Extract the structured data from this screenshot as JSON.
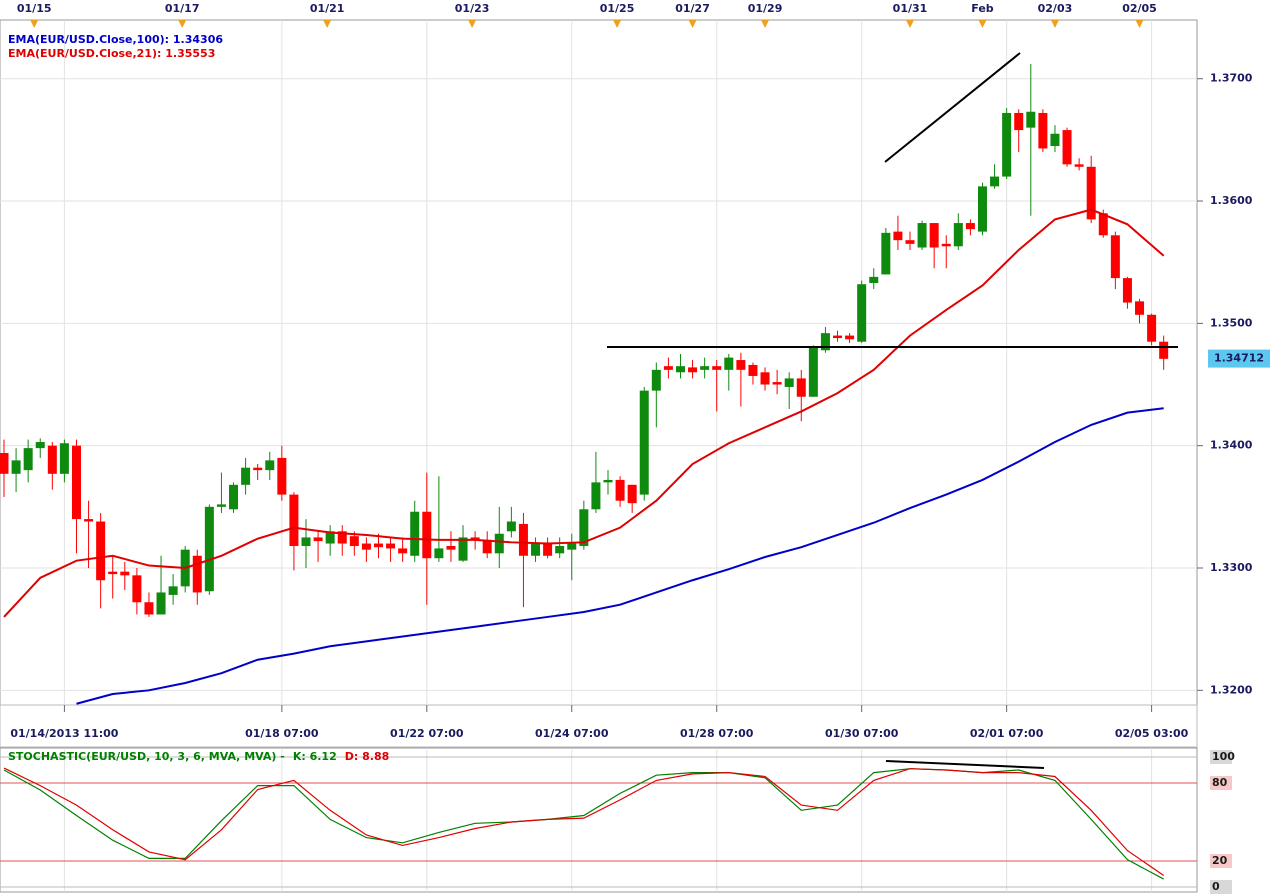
{
  "chart_data": [
    {
      "type": "candlestick",
      "ylim": [
        1.3188,
        1.3748
      ],
      "yticks": [
        {
          "value": 1.32,
          "label": "1.3200"
        },
        {
          "value": 1.33,
          "label": "1.3300"
        },
        {
          "value": 1.34,
          "label": "1.3400"
        },
        {
          "value": 1.35,
          "label": "1.3500"
        },
        {
          "value": 1.36,
          "label": "1.3600"
        },
        {
          "value": 1.37,
          "label": "1.3700"
        }
      ],
      "xticks_top": [
        {
          "value": 2.5,
          "label": "01/15"
        },
        {
          "value": 14.75,
          "label": "01/17"
        },
        {
          "value": 26.75,
          "label": "01/21"
        },
        {
          "value": 38.75,
          "label": "01/23"
        },
        {
          "value": 50.75,
          "label": "01/25"
        },
        {
          "value": 57,
          "label": "01/27"
        },
        {
          "value": 63,
          "label": "01/29"
        },
        {
          "value": 75,
          "label": "01/31"
        },
        {
          "value": 81,
          "label": "Feb"
        },
        {
          "value": 87,
          "label": "02/03"
        },
        {
          "value": 94,
          "label": "02/05"
        }
      ],
      "xticks": [
        {
          "value": 5,
          "label": "01/14/2013 11:00"
        },
        {
          "value": 23,
          "label": "01/18 07:00"
        },
        {
          "value": 35,
          "label": "01/22 07:00"
        },
        {
          "value": 47,
          "label": "01/24 07:00"
        },
        {
          "value": 59,
          "label": "01/28 07:00"
        },
        {
          "value": 71,
          "label": "01/30 07:00"
        },
        {
          "value": 83,
          "label": "02/01 07:00"
        },
        {
          "value": 95,
          "label": "02/05 03:00"
        }
      ],
      "grid": true,
      "up_color": "#0e8a0e",
      "down_color": "#ff0000",
      "open": [
        1.3394,
        1.3377,
        1.338,
        1.3398,
        1.34,
        1.3377,
        1.34,
        1.334,
        1.3338,
        1.3297,
        1.3297,
        1.3294,
        1.3272,
        1.3262,
        1.3278,
        1.3285,
        1.331,
        1.3281,
        1.335,
        1.3348,
        1.3368,
        1.3382,
        1.338,
        1.339,
        1.336,
        1.3318,
        1.3325,
        1.332,
        1.333,
        1.3326,
        1.332,
        1.332,
        1.332,
        1.3316,
        1.331,
        1.3346,
        1.3308,
        1.3318,
        1.3306,
        1.3325,
        1.3323,
        1.3312,
        1.333,
        1.3336,
        1.331,
        1.332,
        1.3312,
        1.3315,
        1.3318,
        1.3348,
        1.337,
        1.3372,
        1.3368,
        1.336,
        1.3445,
        1.3465,
        1.346,
        1.3464,
        1.3462,
        1.3465,
        1.3462,
        1.347,
        1.3466,
        1.346,
        1.3452,
        1.3448,
        1.3455,
        1.344,
        1.3478,
        1.349,
        1.349,
        1.3485,
        1.3533,
        1.354,
        1.3575,
        1.3568,
        1.3562,
        1.3582,
        1.3565,
        1.3563,
        1.3582,
        1.3575,
        1.3612,
        1.362,
        1.3672,
        1.366,
        1.3672,
        1.3645,
        1.3658,
        1.363,
        1.3628,
        1.359,
        1.3572,
        1.3537,
        1.3518,
        1.3507,
        1.3485
      ],
      "high": [
        1.3405,
        1.3398,
        1.3405,
        1.3406,
        1.3403,
        1.3405,
        1.3405,
        1.3355,
        1.3345,
        1.331,
        1.3305,
        1.33,
        1.328,
        1.331,
        1.3295,
        1.3318,
        1.3315,
        1.3352,
        1.3378,
        1.337,
        1.339,
        1.3385,
        1.3395,
        1.34,
        1.3362,
        1.334,
        1.333,
        1.3335,
        1.3335,
        1.333,
        1.3325,
        1.3328,
        1.3325,
        1.3325,
        1.3355,
        1.3378,
        1.3375,
        1.333,
        1.3335,
        1.333,
        1.333,
        1.335,
        1.335,
        1.3345,
        1.3325,
        1.3325,
        1.3325,
        1.3328,
        1.3355,
        1.3395,
        1.338,
        1.3375,
        1.3368,
        1.3448,
        1.3468,
        1.3472,
        1.3475,
        1.347,
        1.3472,
        1.347,
        1.3475,
        1.3476,
        1.3468,
        1.3464,
        1.3462,
        1.346,
        1.3462,
        1.3482,
        1.3497,
        1.3494,
        1.3492,
        1.3535,
        1.3545,
        1.3578,
        1.3588,
        1.3575,
        1.3584,
        1.3582,
        1.3572,
        1.359,
        1.3585,
        1.3615,
        1.363,
        1.3676,
        1.3675,
        1.3712,
        1.3675,
        1.3662,
        1.366,
        1.3635,
        1.3637,
        1.3593,
        1.3575,
        1.3538,
        1.352,
        1.3508,
        1.349
      ],
      "low": [
        1.3358,
        1.3362,
        1.337,
        1.339,
        1.3364,
        1.337,
        1.3312,
        1.33,
        1.3267,
        1.3275,
        1.3282,
        1.3262,
        1.326,
        1.3262,
        1.327,
        1.328,
        1.327,
        1.3278,
        1.3345,
        1.3345,
        1.336,
        1.3372,
        1.3372,
        1.3355,
        1.3298,
        1.33,
        1.3305,
        1.331,
        1.331,
        1.331,
        1.3305,
        1.3308,
        1.3305,
        1.3305,
        1.3305,
        1.327,
        1.3305,
        1.3305,
        1.3305,
        1.3315,
        1.3308,
        1.33,
        1.3325,
        1.3268,
        1.3305,
        1.3308,
        1.3308,
        1.329,
        1.3315,
        1.3345,
        1.336,
        1.335,
        1.3345,
        1.3355,
        1.3415,
        1.3455,
        1.3455,
        1.3455,
        1.3455,
        1.3428,
        1.3445,
        1.3432,
        1.345,
        1.3445,
        1.3442,
        1.343,
        1.342,
        1.344,
        1.3476,
        1.3485,
        1.3484,
        1.3484,
        1.3528,
        1.354,
        1.356,
        1.356,
        1.356,
        1.3545,
        1.3545,
        1.356,
        1.3572,
        1.3572,
        1.361,
        1.3618,
        1.364,
        1.3588,
        1.364,
        1.364,
        1.3628,
        1.3625,
        1.3582,
        1.357,
        1.3528,
        1.3512,
        1.35,
        1.3482,
        1.3462
      ],
      "close": [
        1.3377,
        1.3388,
        1.3398,
        1.3403,
        1.3377,
        1.3402,
        1.334,
        1.3338,
        1.329,
        1.3295,
        1.3294,
        1.3272,
        1.3262,
        1.328,
        1.3285,
        1.3315,
        1.328,
        1.335,
        1.3352,
        1.3368,
        1.3382,
        1.338,
        1.3388,
        1.336,
        1.3318,
        1.3325,
        1.3322,
        1.333,
        1.332,
        1.3318,
        1.3315,
        1.3317,
        1.3316,
        1.3312,
        1.3346,
        1.3308,
        1.3316,
        1.3315,
        1.3325,
        1.3323,
        1.3312,
        1.3328,
        1.3338,
        1.331,
        1.332,
        1.331,
        1.3318,
        1.332,
        1.3348,
        1.337,
        1.3372,
        1.3355,
        1.3353,
        1.3445,
        1.3462,
        1.3462,
        1.3465,
        1.346,
        1.3465,
        1.3462,
        1.3472,
        1.3462,
        1.3457,
        1.345,
        1.345,
        1.3455,
        1.344,
        1.348,
        1.3492,
        1.3488,
        1.3487,
        1.3532,
        1.3538,
        1.3574,
        1.3568,
        1.3565,
        1.3582,
        1.3562,
        1.3563,
        1.3582,
        1.3577,
        1.3612,
        1.362,
        1.3672,
        1.3658,
        1.3673,
        1.3643,
        1.3655,
        1.363,
        1.3628,
        1.3585,
        1.3572,
        1.3537,
        1.3517,
        1.3507,
        1.3485,
        1.3471
      ],
      "lines": [
        {
          "name": "EMA(EUR/USD.Close,100): 1.34306",
          "color": "#0000c8",
          "x": [
            6,
            9,
            12,
            15,
            18,
            21,
            24,
            27,
            30,
            33,
            36,
            39,
            42,
            45,
            48,
            51,
            54,
            57,
            60,
            63,
            66,
            69,
            72,
            75,
            78,
            81,
            84,
            87,
            90,
            93,
            96
          ],
          "values": [
            1.3189,
            1.3197,
            1.32,
            1.3206,
            1.3214,
            1.3225,
            1.323,
            1.3236,
            1.324,
            1.3244,
            1.3248,
            1.3252,
            1.3256,
            1.326,
            1.3264,
            1.327,
            1.328,
            1.329,
            1.3299,
            1.3309,
            1.3317,
            1.3327,
            1.3337,
            1.3349,
            1.336,
            1.3372,
            1.3387,
            1.3403,
            1.3417,
            1.3427,
            1.34306
          ]
        },
        {
          "name": "EMA(EUR/USD.Close,21): 1.35553",
          "color": "#e00000",
          "x": [
            0,
            3,
            6,
            9,
            12,
            15,
            18,
            21,
            24,
            27,
            30,
            33,
            36,
            39,
            42,
            45,
            48,
            51,
            54,
            57,
            60,
            63,
            66,
            69,
            72,
            75,
            78,
            81,
            84,
            87,
            90,
            93,
            96
          ],
          "values": [
            1.326,
            1.3292,
            1.3306,
            1.331,
            1.3302,
            1.33,
            1.331,
            1.3324,
            1.3333,
            1.3329,
            1.3327,
            1.3324,
            1.3323,
            1.3323,
            1.3321,
            1.332,
            1.3321,
            1.3333,
            1.3355,
            1.3385,
            1.3402,
            1.3415,
            1.3428,
            1.3443,
            1.3462,
            1.349,
            1.3511,
            1.3531,
            1.356,
            1.3585,
            1.3593,
            1.3581,
            1.35553
          ]
        }
      ],
      "last_price": {
        "value": 1.34712,
        "label": "1.34712"
      }
    },
    {
      "type": "line",
      "title": "STOCHASTIC(EUR/USD, 10, 3, 6, MVA, MVA)  -",
      "ylim": [
        0,
        100
      ],
      "yticks": [
        0,
        20,
        80,
        100
      ],
      "x": [
        0,
        3,
        6,
        9,
        12,
        15,
        18,
        21,
        24,
        27,
        30,
        33,
        36,
        39,
        42,
        45,
        48,
        51,
        54,
        57,
        60,
        63,
        66,
        69,
        72,
        75,
        78,
        81,
        84,
        87,
        90,
        93,
        96
      ],
      "series": [
        {
          "name": "K: 6.12",
          "color": "#008000",
          "values": [
            90,
            74.6,
            55,
            36,
            22,
            22,
            51,
            78,
            78,
            52,
            38,
            34,
            42,
            49,
            50,
            52,
            55,
            72,
            86,
            88,
            88,
            84,
            59,
            63,
            88,
            91,
            90,
            88,
            90,
            82,
            52,
            21,
            6.12
          ]
        },
        {
          "name": "D: 8.88",
          "color": "#e00000",
          "values": [
            91.5,
            78,
            63,
            44,
            27,
            21,
            44,
            75,
            82,
            59,
            40,
            32,
            38,
            45,
            50,
            52,
            53,
            67,
            82,
            87,
            88,
            85,
            63,
            59,
            82,
            91,
            90,
            88,
            88,
            85,
            59,
            28,
            8.88
          ]
        }
      ]
    }
  ]
}
